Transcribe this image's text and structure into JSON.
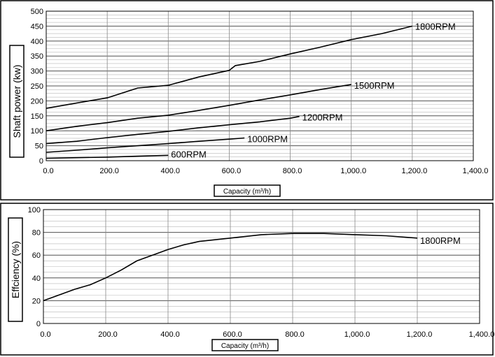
{
  "chart_data": [
    {
      "type": "line",
      "ylabel": "Shaft power (kw)",
      "xlabel": "Capacity (m³/h)",
      "xlim": [
        0,
        1400
      ],
      "ylim": [
        0,
        500
      ],
      "x_ticks": [
        "0.0",
        "200.0",
        "400.0",
        "600.0",
        "800.0",
        "1,000.0",
        "1,200.0",
        "1,400.0"
      ],
      "y_ticks": [
        "0",
        "50",
        "100",
        "150",
        "200",
        "250",
        "300",
        "350",
        "400",
        "450",
        "500"
      ],
      "grid": true,
      "series": [
        {
          "name": "1800RPM",
          "points": [
            [
              0,
              175
            ],
            [
              100,
              193
            ],
            [
              200,
              210
            ],
            [
              300,
              243
            ],
            [
              400,
              252
            ],
            [
              500,
              280
            ],
            [
              600,
              302
            ],
            [
              620,
              318
            ],
            [
              700,
              332
            ],
            [
              800,
              357
            ],
            [
              900,
              380
            ],
            [
              1000,
              405
            ],
            [
              1100,
              425
            ],
            [
              1200,
              450
            ]
          ]
        },
        {
          "name": "1500RPM",
          "points": [
            [
              0,
              100
            ],
            [
              100,
              115
            ],
            [
              200,
              127
            ],
            [
              300,
              142
            ],
            [
              400,
              152
            ],
            [
              500,
              168
            ],
            [
              600,
              185
            ],
            [
              700,
              203
            ],
            [
              800,
              220
            ],
            [
              900,
              238
            ],
            [
              1000,
              255
            ]
          ]
        },
        {
          "name": "1200RPM",
          "points": [
            [
              0,
              57
            ],
            [
              100,
              65
            ],
            [
              200,
              77
            ],
            [
              300,
              88
            ],
            [
              400,
              98
            ],
            [
              500,
              110
            ],
            [
              600,
              120
            ],
            [
              700,
              130
            ],
            [
              800,
              142
            ],
            [
              830,
              148
            ]
          ]
        },
        {
          "name": "1000RPM",
          "points": [
            [
              0,
              28
            ],
            [
              100,
              35
            ],
            [
              200,
              43
            ],
            [
              300,
              50
            ],
            [
              400,
              57
            ],
            [
              500,
              65
            ],
            [
              600,
              72
            ],
            [
              650,
              76
            ]
          ]
        },
        {
          "name": "600RPM",
          "points": [
            [
              0,
              8
            ],
            [
              100,
              10
            ],
            [
              200,
              12
            ],
            [
              300,
              15
            ],
            [
              400,
              18
            ]
          ]
        }
      ]
    },
    {
      "type": "line",
      "ylabel": "Effciency (%)",
      "xlabel": "Capacity (m³/h)",
      "xlim": [
        0,
        1400
      ],
      "ylim": [
        0,
        100
      ],
      "x_ticks": [
        "0.0",
        "200.0",
        "400.0",
        "600.0",
        "800.0",
        "1,000.0",
        "1,200.0",
        "1,400.0"
      ],
      "y_ticks": [
        "0",
        "20",
        "40",
        "60",
        "80",
        "100"
      ],
      "grid": true,
      "series": [
        {
          "name": "1800RPM",
          "points": [
            [
              0,
              20
            ],
            [
              50,
              25
            ],
            [
              100,
              30
            ],
            [
              150,
              34
            ],
            [
              200,
              40
            ],
            [
              250,
              47
            ],
            [
              300,
              55
            ],
            [
              350,
              60
            ],
            [
              400,
              65
            ],
            [
              450,
              69
            ],
            [
              500,
              72
            ],
            [
              600,
              75
            ],
            [
              700,
              78
            ],
            [
              800,
              79
            ],
            [
              900,
              79
            ],
            [
              1000,
              78
            ],
            [
              1100,
              77
            ],
            [
              1200,
              75
            ]
          ]
        }
      ]
    }
  ]
}
